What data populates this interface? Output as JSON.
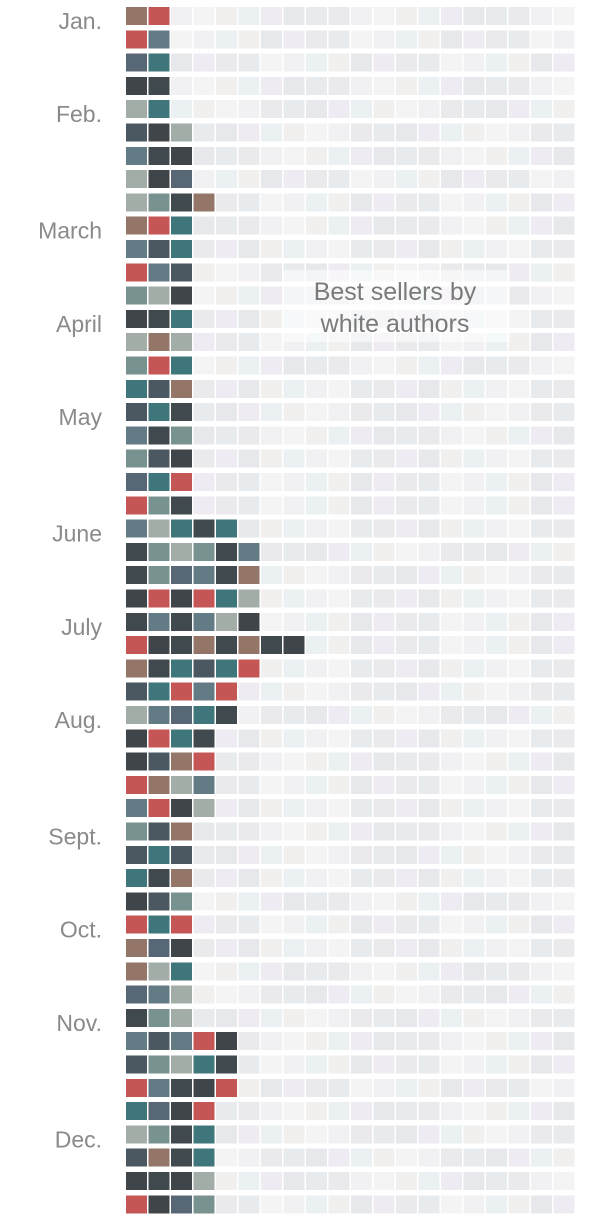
{
  "chart_data": {
    "type": "heatmap",
    "title": "",
    "xlabel": "",
    "ylabel": "",
    "row_unit": "week",
    "weeks_total": 52,
    "books_per_week": 20,
    "highlighted_count_by_week": [
      2,
      2,
      2,
      2,
      2,
      3,
      3,
      3,
      4,
      3,
      3,
      3,
      3,
      3,
      3,
      3,
      3,
      3,
      3,
      3,
      3,
      3,
      5,
      6,
      6,
      6,
      6,
      8,
      6,
      5,
      5,
      4,
      4,
      4,
      4,
      3,
      3,
      3,
      3,
      3,
      3,
      3,
      3,
      3,
      5,
      5,
      5,
      4,
      4,
      4,
      4,
      4
    ],
    "months": [
      {
        "label": "Jan.",
        "week_index": 0
      },
      {
        "label": "Feb.",
        "week_index": 4
      },
      {
        "label": "March",
        "week_index": 9
      },
      {
        "label": "April",
        "week_index": 13
      },
      {
        "label": "May",
        "week_index": 17
      },
      {
        "label": "June",
        "week_index": 22
      },
      {
        "label": "July",
        "week_index": 26
      },
      {
        "label": "Aug.",
        "week_index": 30
      },
      {
        "label": "Sept.",
        "week_index": 35
      },
      {
        "label": "Oct.",
        "week_index": 39
      },
      {
        "label": "Nov.",
        "week_index": 43
      },
      {
        "label": "Dec.",
        "week_index": 48
      }
    ],
    "annotations": [
      {
        "text_lines": [
          "Best sellers by",
          "white authors"
        ]
      }
    ],
    "colors": {
      "highlight_palette": [
        "#3c4a55",
        "#56707a",
        "#2f3a3f",
        "#6c8a86",
        "#4a5a6a",
        "#8a6a5a",
        "#c04848",
        "#2f6a70",
        "#9aa6a0",
        "#30353a"
      ],
      "faded_palette": [
        "#e6e6ea",
        "#efeff1",
        "#e2e4e8",
        "#f0ecec",
        "#e8eef0",
        "#ece8f0",
        "#f2f2f2",
        "#e4e8ea"
      ],
      "label_color": "#8a8a8a",
      "annotation_color": "#7a7a7a"
    }
  }
}
